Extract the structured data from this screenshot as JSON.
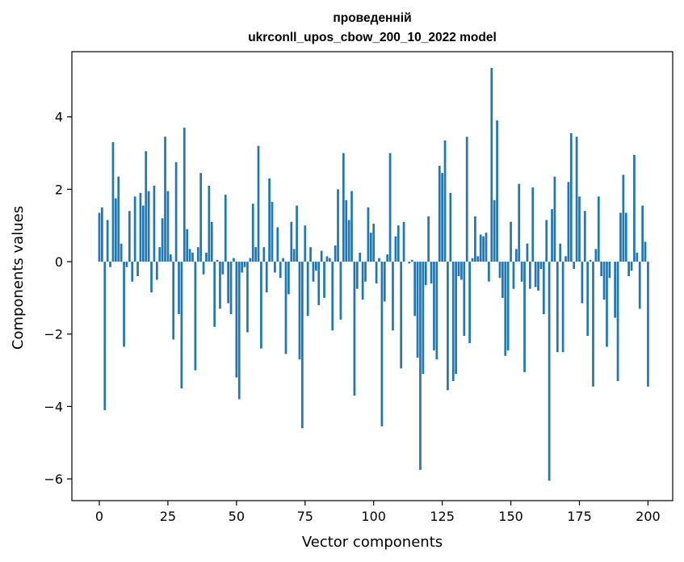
{
  "chart_data": {
    "type": "bar",
    "title": [
      "проведенній",
      "ukrconll_upos_cbow_200_10_2022 model"
    ],
    "xlabel": "Vector components",
    "ylabel": "Components values",
    "xlim": [
      -10,
      209
    ],
    "ylim": [
      -6.6,
      5.8
    ],
    "xticks": [
      0,
      25,
      50,
      75,
      100,
      125,
      150,
      175,
      200
    ],
    "xtick_labels": [
      "0",
      "25",
      "50",
      "75",
      "100",
      "125",
      "150",
      "175",
      "200"
    ],
    "yticks": [
      -6,
      -4,
      -2,
      0,
      2,
      4
    ],
    "ytick_labels": [
      "−6",
      "−4",
      "−2",
      "0",
      "2",
      "4"
    ],
    "grid": false,
    "bar_color": "#1f77b4",
    "values": [
      1.35,
      1.5,
      -4.1,
      1.15,
      -0.15,
      3.3,
      1.75,
      2.35,
      0.5,
      -2.35,
      -0.15,
      1.4,
      -0.55,
      1.8,
      -0.4,
      1.9,
      1.55,
      3.05,
      1.95,
      -0.85,
      2.1,
      -0.5,
      0.4,
      1.2,
      3.45,
      1.95,
      0.2,
      -2.15,
      2.75,
      -1.45,
      -3.5,
      3.7,
      0.9,
      0.35,
      0.25,
      -3.0,
      0.4,
      2.45,
      -0.35,
      0.25,
      2.1,
      1.1,
      -1.8,
      0.05,
      -1.3,
      -0.35,
      1.85,
      -1.15,
      -1.45,
      0.1,
      -3.2,
      -3.8,
      -0.3,
      -0.15,
      -1.95,
      0.1,
      1.6,
      0.4,
      3.2,
      -2.4,
      0.4,
      -0.85,
      2.3,
      1.65,
      -0.3,
      0.95,
      -0.45,
      0.1,
      -2.55,
      -0.9,
      1.1,
      0.35,
      1.55,
      -2.7,
      -4.6,
      1.0,
      -1.5,
      0.4,
      -0.55,
      -0.25,
      -1.2,
      0.3,
      -1.0,
      0.15,
      0.1,
      -1.9,
      0.45,
      2.0,
      -1.6,
      3.0,
      1.7,
      1.15,
      1.95,
      -3.7,
      -0.75,
      0.25,
      -1.05,
      -0.55,
      1.5,
      0.8,
      1.05,
      -0.6,
      0.1,
      -4.55,
      -1.1,
      0.2,
      3.0,
      -1.9,
      0.7,
      1.0,
      -2.95,
      1.1,
      0.0,
      -0.05,
      0.05,
      -1.5,
      -2.65,
      -5.75,
      -3.1,
      -0.65,
      1.25,
      -0.6,
      -2.45,
      -2.7,
      2.65,
      2.45,
      3.35,
      -3.55,
      1.9,
      -3.3,
      -3.1,
      -0.4,
      -0.5,
      -2.05,
      3.45,
      -2.25,
      0.1,
      1.25,
      0.15,
      0.75,
      0.7,
      0.8,
      -0.55,
      5.35,
      1.7,
      3.9,
      -0.45,
      -1.0,
      -2.6,
      -2.45,
      1.1,
      -0.75,
      0.35,
      2.15,
      -0.55,
      -3.05,
      0.5,
      -0.75,
      2.05,
      -0.7,
      -0.8,
      -0.2,
      -1.45,
      1.15,
      -6.05,
      1.45,
      2.35,
      -2.5,
      0.5,
      -2.5,
      0.15,
      2.2,
      3.55,
      -0.2,
      3.45,
      1.8,
      -1.15,
      1.4,
      -2.05,
      0.05,
      -3.45,
      0.35,
      1.8,
      -0.4,
      -1.05,
      -2.35,
      -0.45,
      0.0,
      -1.55,
      -3.3,
      1.35,
      2.4,
      1.35,
      -0.4,
      -0.25,
      2.95,
      0.25,
      -1.3,
      1.55,
      0.55,
      -3.45
    ]
  }
}
